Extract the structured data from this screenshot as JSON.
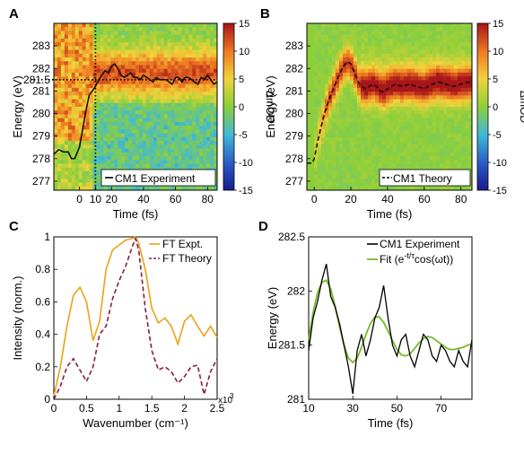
{
  "chart_data": [
    {
      "panel": "A",
      "type": "heatmap",
      "xlabel": "Time (fs)",
      "ylabel": "Energy (eV)",
      "colorbar_label": "ΔmOD",
      "xlim": [
        -16,
        86
      ],
      "ylim": [
        276.6,
        284
      ],
      "x_ticks": [
        0,
        10,
        20,
        40,
        60,
        80
      ],
      "y_ticks": [
        277,
        278,
        279,
        280,
        281,
        281.5,
        282,
        283
      ],
      "y_tick_labels": [
        "277",
        "278",
        "279",
        "280",
        "281",
        "281.5",
        "282",
        "283"
      ],
      "colorbar_ticks": [
        -15,
        -10,
        -5,
        0,
        5,
        10,
        15
      ],
      "colorbar_range": [
        -15,
        15
      ],
      "markers": {
        "vertical_line_time": 10,
        "horizontal_line_energy": 281.5
      },
      "legend": "CM1 Experiment",
      "legend_position": "bottom-right",
      "series": [
        {
          "name": "CM1 Experiment",
          "x": [
            -16,
            -13,
            -10,
            -7,
            -5,
            -3,
            0,
            2,
            4,
            6,
            8,
            10,
            12,
            14,
            16,
            18,
            20,
            22,
            24,
            26,
            28,
            30,
            32,
            34,
            36,
            38,
            40,
            42,
            44,
            46,
            48,
            50,
            52,
            54,
            56,
            58,
            60,
            62,
            64,
            66,
            68,
            70,
            72,
            74,
            76,
            78,
            80,
            82,
            84,
            86
          ],
          "y": [
            278.2,
            278.4,
            278.3,
            278.3,
            278.0,
            278.0,
            278.5,
            279.3,
            280.1,
            280.8,
            281.0,
            281.2,
            281.5,
            281.7,
            281.9,
            281.8,
            282.1,
            282.2,
            282.0,
            281.7,
            281.6,
            281.7,
            281.8,
            281.6,
            281.6,
            281.5,
            281.7,
            281.6,
            281.5,
            281.4,
            281.6,
            281.5,
            281.5,
            281.5,
            281.4,
            281.3,
            281.6,
            281.6,
            281.4,
            281.6,
            281.6,
            281.5,
            281.4,
            281.3,
            281.6,
            281.5,
            281.7,
            281.5,
            281.3,
            281.4
          ]
        }
      ]
    },
    {
      "panel": "B",
      "type": "heatmap",
      "xlabel": "Time (fs)",
      "ylabel": "Energy (eV)",
      "colorbar_label": "ΔmOD",
      "xlim": [
        -4,
        86
      ],
      "ylim": [
        276.6,
        284
      ],
      "x_ticks": [
        0,
        20,
        40,
        60,
        80
      ],
      "y_ticks": [
        277,
        278,
        279,
        280,
        281,
        282,
        283
      ],
      "y_tick_labels": [
        "277",
        "278",
        "279",
        "280",
        "281",
        "282",
        "283"
      ],
      "colorbar_ticks": [
        -15,
        -10,
        -5,
        0,
        5,
        10,
        15
      ],
      "colorbar_range": [
        -15,
        15
      ],
      "legend": "CM1 Theory",
      "legend_position": "bottom-right",
      "series": [
        {
          "name": "CM1 Theory",
          "x": [
            -4,
            -1,
            0,
            2,
            4,
            6,
            8,
            10,
            12,
            14,
            16,
            18,
            20,
            22,
            24,
            26,
            28,
            30,
            32,
            34,
            36,
            38,
            40,
            44,
            48,
            52,
            56,
            60,
            64,
            68,
            72,
            76,
            80,
            84,
            86
          ],
          "y": [
            277.8,
            277.8,
            278.0,
            278.8,
            279.5,
            280.1,
            280.6,
            281.0,
            281.4,
            281.8,
            282.1,
            282.3,
            282.2,
            281.8,
            281.4,
            281.2,
            281.1,
            281.2,
            281.3,
            281.2,
            281.0,
            280.95,
            281.1,
            281.3,
            281.2,
            281.3,
            281.2,
            281.1,
            281.3,
            281.4,
            281.3,
            281.2,
            281.3,
            281.4,
            281.3
          ]
        }
      ]
    },
    {
      "panel": "C",
      "type": "line",
      "xlabel": "Wavenumber (cm⁻¹)",
      "ylabel": "Intensity (norm.)",
      "xlim": [
        0,
        2500
      ],
      "ylim": [
        0,
        1
      ],
      "x_ticks": [
        0,
        500,
        1000,
        1500,
        2000,
        2500
      ],
      "x_tick_labels": [
        "0",
        "0.5",
        "1",
        "1.5",
        "2",
        "2.5"
      ],
      "y_ticks": [
        0,
        0.2,
        0.4,
        0.6,
        0.8,
        1
      ],
      "y_tick_labels": [
        "0",
        "0.2",
        "0.4",
        "0.6",
        "0.8",
        "1"
      ],
      "x_scale_note": "x10",
      "x_scale_exponent": "3",
      "legend_position": "top-right",
      "series": [
        {
          "name": "FT Expt.",
          "color": "#e8a317",
          "style": "solid",
          "x": [
            0,
            100,
            200,
            300,
            400,
            500,
            600,
            700,
            800,
            900,
            1000,
            1100,
            1200,
            1250,
            1300,
            1400,
            1500,
            1600,
            1700,
            1800,
            1900,
            2000,
            2100,
            2200,
            2300,
            2400,
            2500
          ],
          "y": [
            0.02,
            0.2,
            0.45,
            0.64,
            0.69,
            0.6,
            0.36,
            0.48,
            0.8,
            0.92,
            0.95,
            0.98,
            0.99,
            1.0,
            0.96,
            0.8,
            0.56,
            0.47,
            0.5,
            0.45,
            0.34,
            0.48,
            0.52,
            0.45,
            0.39,
            0.45,
            0.38
          ]
        },
        {
          "name": "FT Theory",
          "color": "#8b1a3a",
          "style": "dashed",
          "x": [
            0,
            100,
            200,
            300,
            400,
            500,
            600,
            700,
            800,
            900,
            1000,
            1100,
            1200,
            1250,
            1300,
            1400,
            1500,
            1600,
            1700,
            1800,
            1900,
            2000,
            2100,
            2200,
            2300,
            2400,
            2500
          ],
          "y": [
            0.0,
            0.08,
            0.2,
            0.25,
            0.18,
            0.11,
            0.2,
            0.4,
            0.45,
            0.62,
            0.73,
            0.82,
            0.94,
            0.99,
            0.92,
            0.56,
            0.3,
            0.18,
            0.2,
            0.17,
            0.1,
            0.14,
            0.2,
            0.21,
            0.03,
            0.17,
            0.25
          ]
        }
      ]
    },
    {
      "panel": "D",
      "type": "line",
      "xlabel": "Time (fs)",
      "ylabel": "Energy (eV)",
      "xlim": [
        10,
        84
      ],
      "ylim": [
        281,
        282.5
      ],
      "x_ticks": [
        10,
        30,
        50,
        70
      ],
      "y_ticks": [
        281,
        281.5,
        282,
        282.5
      ],
      "y_tick_labels": [
        "281",
        "281.5",
        "282",
        "282.5"
      ],
      "legend_position": "top-right",
      "series": [
        {
          "name": "CM1 Experiment",
          "color": "#000000",
          "style": "solid",
          "x": [
            10,
            12,
            14,
            16,
            18,
            20,
            22,
            24,
            26,
            28,
            30,
            32,
            34,
            36,
            38,
            40,
            42,
            44,
            46,
            48,
            50,
            52,
            54,
            56,
            58,
            60,
            62,
            64,
            66,
            68,
            70,
            72,
            74,
            76,
            78,
            80,
            82,
            84
          ],
          "y": [
            281.45,
            281.75,
            281.9,
            282.1,
            282.25,
            281.95,
            281.85,
            281.7,
            281.5,
            281.3,
            281.05,
            281.45,
            281.6,
            281.4,
            281.55,
            281.75,
            281.85,
            282.05,
            281.75,
            281.5,
            281.4,
            281.55,
            281.6,
            281.4,
            281.3,
            281.45,
            281.6,
            281.55,
            281.4,
            281.35,
            281.5,
            281.45,
            281.35,
            281.3,
            281.45,
            281.35,
            281.3,
            281.55
          ]
        },
        {
          "name": "Fit (e^(-t/τ)cos(ωt))",
          "color": "#76b82a",
          "style": "solid",
          "x": [
            10,
            12,
            14,
            16,
            18,
            20,
            22,
            24,
            26,
            28,
            30,
            32,
            34,
            36,
            38,
            40,
            42,
            44,
            46,
            48,
            50,
            52,
            54,
            56,
            58,
            60,
            62,
            64,
            66,
            68,
            70,
            72,
            74,
            76,
            78,
            80,
            82,
            84
          ],
          "y": [
            281.55,
            281.8,
            281.98,
            282.08,
            282.1,
            282.02,
            281.86,
            281.67,
            281.5,
            281.38,
            281.34,
            281.38,
            281.48,
            281.6,
            281.7,
            281.76,
            281.76,
            281.71,
            281.63,
            281.54,
            281.46,
            281.41,
            281.4,
            281.42,
            281.47,
            281.52,
            281.56,
            281.58,
            281.57,
            281.54,
            281.51,
            281.48,
            281.46,
            281.46,
            281.47,
            281.48,
            281.5,
            281.51
          ]
        }
      ]
    }
  ],
  "legend_labels": {
    "C_expt": "FT Expt.",
    "C_theory": "FT Theory",
    "D_expt": "CM1 Experiment",
    "D_fit_prefix": "Fit  (e",
    "D_fit_exp": "-t/τ",
    "D_fit_suffix": "cos(ωt))"
  },
  "panel_labels": [
    "A",
    "B",
    "C",
    "D"
  ]
}
